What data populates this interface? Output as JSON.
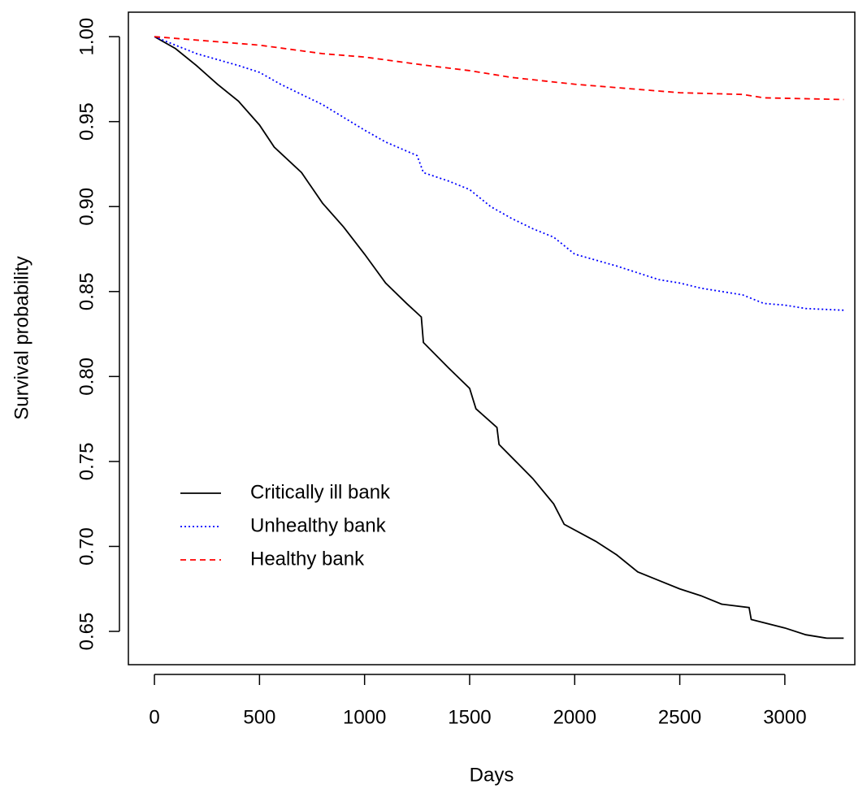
{
  "chart_data": {
    "type": "line",
    "x_label": "Days",
    "y_label": "Survival probability",
    "xlim": [
      -124,
      3333
    ],
    "ylim": [
      0.6304,
      1.0144
    ],
    "xticks": [
      0,
      500,
      1000,
      1500,
      2000,
      2500,
      3000
    ],
    "yticks": [
      0.65,
      {
        "value": 0.7,
        "label": "0.70"
      },
      0.75,
      {
        "value": 0.8,
        "label": "0.80"
      },
      0.85,
      {
        "value": 0.9,
        "label": "0.90"
      },
      0.95,
      {
        "value": 1.0,
        "label": "1.00"
      }
    ],
    "grid": false,
    "legend": "bottomleft",
    "series": [
      {
        "name": "Critically ill bank",
        "color": "#000000",
        "line_style": "solid",
        "x": [
          0,
          100,
          200,
          300,
          400,
          500,
          570,
          700,
          800,
          900,
          1000,
          1100,
          1200,
          1270,
          1280,
          1400,
          1500,
          1530,
          1630,
          1640,
          1800,
          1900,
          1950,
          2100,
          2200,
          2300,
          2400,
          2500,
          2600,
          2700,
          2830,
          2840,
          3000,
          3100,
          3200,
          3280
        ],
        "values": [
          1.0,
          0.993,
          0.983,
          0.972,
          0.962,
          0.948,
          0.935,
          0.92,
          0.902,
          0.888,
          0.872,
          0.855,
          0.843,
          0.835,
          0.82,
          0.805,
          0.793,
          0.781,
          0.77,
          0.76,
          0.74,
          0.725,
          0.713,
          0.703,
          0.695,
          0.685,
          0.68,
          0.675,
          0.671,
          0.666,
          0.664,
          0.657,
          0.652,
          0.648,
          0.646,
          0.646
        ]
      },
      {
        "name": "Unhealthy bank",
        "color": "#0000ff",
        "line_style": "dotted",
        "x": [
          0,
          200,
          400,
          500,
          600,
          800,
          1000,
          1100,
          1250,
          1280,
          1400,
          1500,
          1600,
          1700,
          1800,
          1900,
          2000,
          2200,
          2400,
          2500,
          2600,
          2800,
          2900,
          3000,
          3100,
          3280
        ],
        "values": [
          1.0,
          0.99,
          0.983,
          0.979,
          0.972,
          0.96,
          0.945,
          0.938,
          0.93,
          0.92,
          0.915,
          0.91,
          0.9,
          0.893,
          0.887,
          0.882,
          0.872,
          0.865,
          0.857,
          0.855,
          0.852,
          0.848,
          0.843,
          0.842,
          0.84,
          0.839
        ]
      },
      {
        "name": "Healthy bank",
        "color": "#ff0000",
        "line_style": "dashed",
        "x": [
          0,
          300,
          500,
          800,
          1000,
          1300,
          1500,
          1700,
          2000,
          2300,
          2500,
          2800,
          2900,
          3280
        ],
        "values": [
          1.0,
          0.997,
          0.995,
          0.99,
          0.988,
          0.983,
          0.98,
          0.976,
          0.972,
          0.969,
          0.967,
          0.966,
          0.964,
          0.963
        ]
      }
    ]
  }
}
